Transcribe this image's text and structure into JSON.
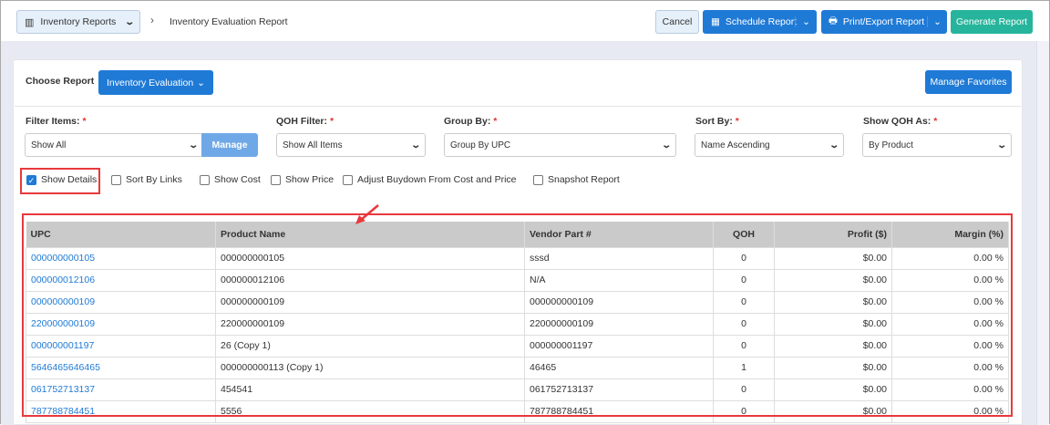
{
  "header": {
    "reports_menu": "Inventory Reports",
    "breadcrumb_current": "Inventory Evaluation Report",
    "cancel": "Cancel",
    "schedule": "Schedule Report",
    "print_export": "Print/Export Report",
    "generate": "Generate Report"
  },
  "choose": {
    "label": "Choose Report",
    "report": "Inventory Evaluation",
    "manage_favorites": "Manage Favorites"
  },
  "filters": {
    "filter_items": {
      "label": "Filter Items:",
      "value": "Show All",
      "manage": "Manage"
    },
    "qoh_filter": {
      "label": "QOH Filter:",
      "value": "Show All Items"
    },
    "group_by": {
      "label": "Group By:",
      "value": "Group By UPC"
    },
    "sort_by": {
      "label": "Sort By:",
      "value": "Name Ascending"
    },
    "show_qoh_as": {
      "label": "Show QOH As:",
      "value": "By Product"
    },
    "required": "*"
  },
  "options": [
    {
      "label": "Show Details",
      "checked": true
    },
    {
      "label": "Sort By Links",
      "checked": false
    },
    {
      "label": "Show Cost",
      "checked": false
    },
    {
      "label": "Show Price",
      "checked": false
    },
    {
      "label": "Adjust Buydown From Cost and Price",
      "checked": false
    },
    {
      "label": "Snapshot Report",
      "checked": false
    }
  ],
  "table": {
    "columns": [
      "UPC",
      "Product Name",
      "Vendor Part #",
      "QOH",
      "Profit ($)",
      "Margin (%)"
    ],
    "rows": [
      [
        "000000000105",
        "000000000105",
        "sssd",
        "0",
        "$0.00",
        "0.00 %"
      ],
      [
        "000000012106",
        "000000012106",
        "N/A",
        "0",
        "$0.00",
        "0.00 %"
      ],
      [
        "000000000109",
        "000000000109",
        "000000000109",
        "0",
        "$0.00",
        "0.00 %"
      ],
      [
        "220000000109",
        "220000000109",
        "220000000109",
        "0",
        "$0.00",
        "0.00 %"
      ],
      [
        "000000001197",
        "26 (Copy 1)",
        "000000001197",
        "0",
        "$0.00",
        "0.00 %"
      ],
      [
        "5646465646465",
        "000000000113 (Copy 1)",
        "46465",
        "1",
        "$0.00",
        "0.00 %"
      ],
      [
        "061752713137",
        "454541",
        "061752713137",
        "0",
        "$0.00",
        "0.00 %"
      ],
      [
        "787788784451",
        "5556",
        "787788784451",
        "0",
        "$0.00",
        "0.00 %"
      ]
    ]
  },
  "colors": {
    "primary": "#1f7ad6",
    "success": "#26b59c",
    "highlight": "#e8393b"
  }
}
